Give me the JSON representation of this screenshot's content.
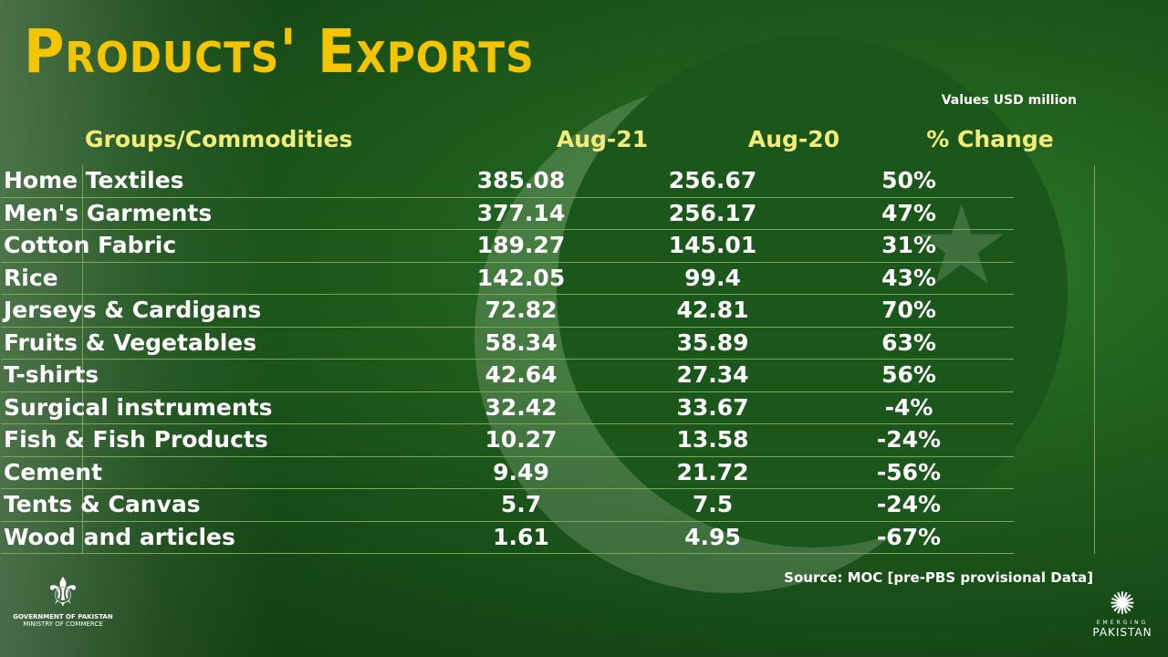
{
  "title": "Products' Exports",
  "units": "Values USD million",
  "source": "Source: MOC [pre-PBS provisional Data]",
  "logos": {
    "left_line1": "GOVERNMENT OF PAKISTAN",
    "left_line2": "MINISTRY OF COMMERCE",
    "right_line1": "EMERGING",
    "right_line2": "PAKISTAN"
  },
  "colors": {
    "title": "#f3c400",
    "header": "#f2ec7a",
    "background": "#1b561a"
  },
  "chart_data": {
    "type": "table",
    "columns": [
      "Groups/Commodities",
      "Aug-21",
      "Aug-20",
      "% Change"
    ],
    "rows": [
      [
        "Home Textiles",
        "385.08",
        "256.67",
        "50%"
      ],
      [
        "Men's Garments",
        "377.14",
        "256.17",
        "47%"
      ],
      [
        "Cotton Fabric",
        "189.27",
        "145.01",
        "31%"
      ],
      [
        "Rice",
        "142.05",
        "99.4",
        "43%"
      ],
      [
        "Jerseys & Cardigans",
        "72.82",
        "42.81",
        "70%"
      ],
      [
        "Fruits & Vegetables",
        "58.34",
        "35.89",
        "63%"
      ],
      [
        "T-shirts",
        "42.64",
        "27.34",
        "56%"
      ],
      [
        "Surgical instruments",
        "32.42",
        "33.67",
        "-4%"
      ],
      [
        "Fish & Fish Products",
        "10.27",
        "13.58",
        "-24%"
      ],
      [
        "Cement",
        "9.49",
        "21.72",
        "-56%"
      ],
      [
        "Tents & Canvas",
        "5.7",
        "7.5",
        "-24%"
      ],
      [
        "Wood and articles",
        "1.61",
        "4.95",
        "-67%"
      ]
    ]
  }
}
